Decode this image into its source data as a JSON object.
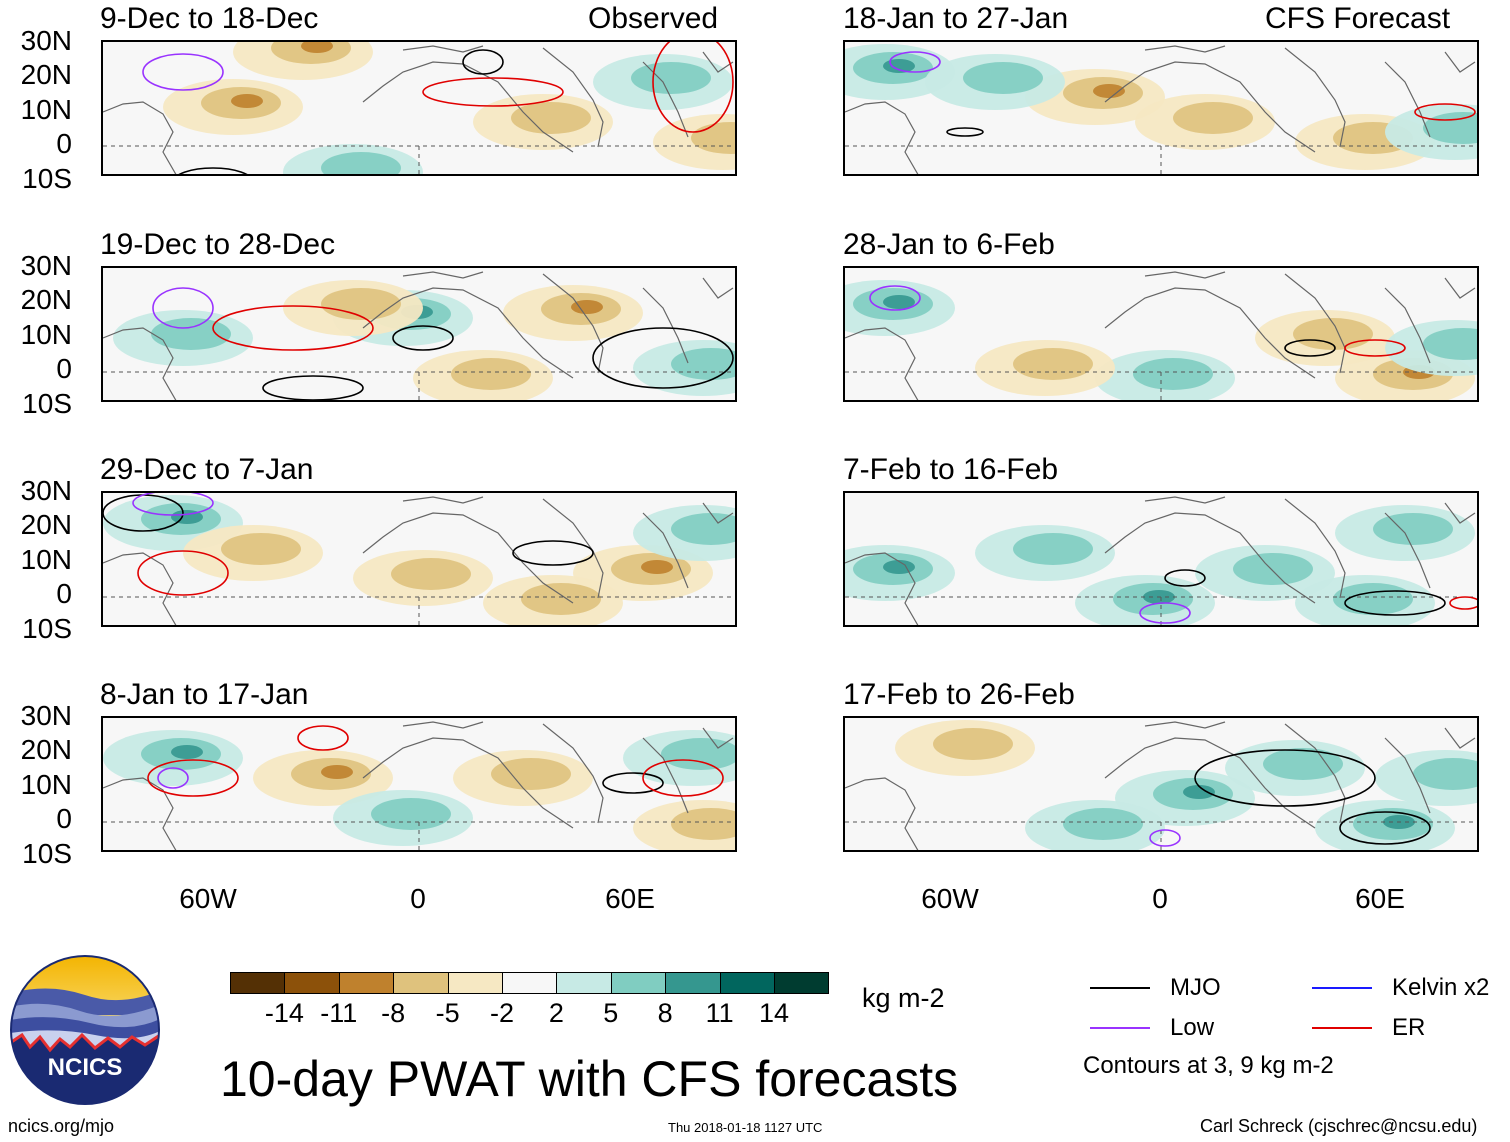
{
  "panels": {
    "left": [
      {
        "period": "9-Dec to 18-Dec",
        "tag": "Observed"
      },
      {
        "period": "19-Dec to 28-Dec",
        "tag": ""
      },
      {
        "period": "29-Dec to 7-Jan",
        "tag": ""
      },
      {
        "period": "8-Jan to 17-Jan",
        "tag": ""
      }
    ],
    "right": [
      {
        "period": "18-Jan to 27-Jan",
        "tag": "CFS Forecast"
      },
      {
        "period": "28-Jan to 6-Feb",
        "tag": ""
      },
      {
        "period": "7-Feb to 16-Feb",
        "tag": ""
      },
      {
        "period": "17-Feb to 26-Feb",
        "tag": ""
      }
    ]
  },
  "lat_labels": [
    "30N",
    "20N",
    "10N",
    "0",
    "10S"
  ],
  "lon_labels": [
    "60W",
    "0",
    "60E"
  ],
  "colorbar": {
    "colors": [
      "#543005",
      "#8c510a",
      "#bf812d",
      "#dfc27d",
      "#f6e8c3",
      "#f7f7f7",
      "#c7eae5",
      "#80cdc1",
      "#35978f",
      "#01665e",
      "#003c30"
    ],
    "labels": [
      "-14",
      "-11",
      "-8",
      "-5",
      "-2",
      "2",
      "5",
      "8",
      "11",
      "14"
    ],
    "units": "kg m-2"
  },
  "legend": {
    "items": [
      {
        "label": "MJO",
        "color": "#000000"
      },
      {
        "label": "Kelvin x2",
        "color": "#1a1aff"
      },
      {
        "label": "Low",
        "color": "#9933ff"
      },
      {
        "label": "ER",
        "color": "#e00000"
      }
    ],
    "note": "Contours at 3, 9 kg m-2"
  },
  "logo": {
    "text": "NCICS"
  },
  "title": "10-day PWAT with CFS forecasts",
  "footer": {
    "left": "ncics.org/mjo",
    "center": "Thu 2018-01-18 1127 UTC",
    "right": "Carl Schreck (cjschrec@ncsu.edu)"
  }
}
